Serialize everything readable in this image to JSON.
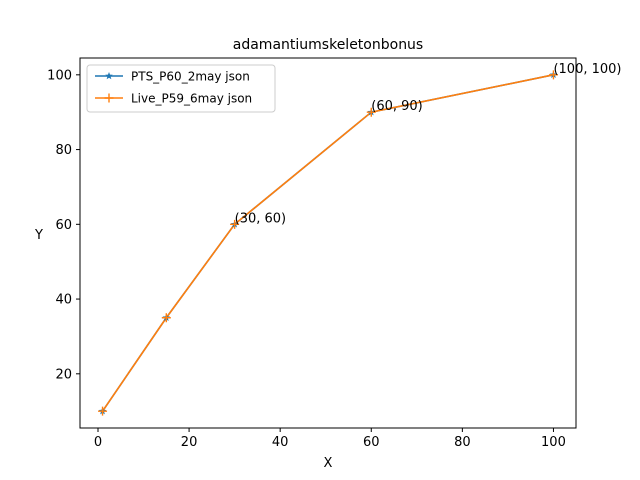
{
  "chart_data": {
    "type": "line",
    "title": "adamantiumskeletonbonus",
    "xlabel": "X",
    "ylabel": "Y",
    "xlim": [
      -3.95,
      104.95
    ],
    "ylim": [
      5.5,
      104.5
    ],
    "xticks": [
      0,
      20,
      40,
      60,
      80,
      100
    ],
    "yticks": [
      20,
      40,
      60,
      80,
      100
    ],
    "grid": false,
    "legend_position": "top-left",
    "series": [
      {
        "name": "PTS_P60_2may json",
        "color": "#1f77b4",
        "marker": "star",
        "x": [
          1,
          15,
          30,
          60,
          100
        ],
        "y": [
          10,
          35,
          60,
          90,
          100
        ]
      },
      {
        "name": "Live_P59_6may json",
        "color": "#ff7f0e",
        "marker": "plus",
        "x": [
          1,
          15,
          30,
          60,
          100
        ],
        "y": [
          10,
          35,
          60,
          90,
          100
        ]
      }
    ],
    "annotations": [
      {
        "x": 30,
        "y": 60,
        "text": "(30, 60)"
      },
      {
        "x": 60,
        "y": 90,
        "text": "(60, 90)"
      },
      {
        "x": 100,
        "y": 100,
        "text": "(100, 100)"
      }
    ]
  }
}
